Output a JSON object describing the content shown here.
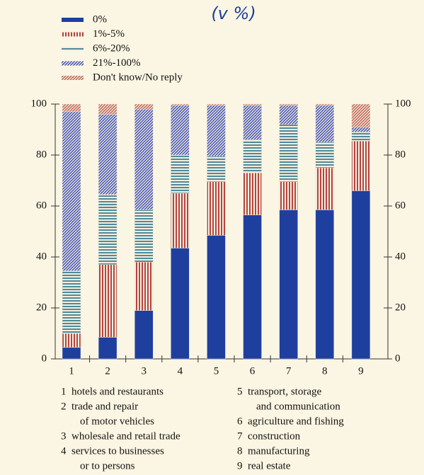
{
  "chart_data": {
    "type": "stacked_bar",
    "title": "(v %)",
    "categories": [
      "1",
      "2",
      "3",
      "4",
      "5",
      "6",
      "7",
      "8",
      "9"
    ],
    "series": [
      {
        "name": "0%",
        "color": "#1f3f9f",
        "pattern": "solid",
        "values": [
          4.5,
          8.5,
          19,
          43.5,
          48.5,
          56.5,
          58.5,
          58.5,
          66
        ]
      },
      {
        "name": "1%-5%",
        "color": "#b5443e",
        "pattern": "vertical",
        "values": [
          5.5,
          28.5,
          19,
          21.5,
          21,
          16.5,
          11,
          16.5,
          19.5
        ]
      },
      {
        "name": "6%-20%",
        "color": "#4f8a99",
        "pattern": "horizontal",
        "values": [
          24.5,
          27.5,
          20.5,
          15,
          10,
          13,
          22.5,
          10,
          3.5
        ]
      },
      {
        "name": "21%-100%",
        "color": "#3f4fb0",
        "pattern": "diagonal",
        "values": [
          62.5,
          31.5,
          39.5,
          19.5,
          20,
          13.5,
          7.5,
          14.5,
          2
        ]
      },
      {
        "name": "Don't know/No reply",
        "color": "#c0604f",
        "pattern": "diagonal",
        "values": [
          3,
          4,
          2,
          0.5,
          0.5,
          0.5,
          0.5,
          0.5,
          9
        ]
      }
    ],
    "ylim": [
      0,
      100
    ],
    "yticks": [
      0,
      20,
      40,
      60,
      80,
      100
    ],
    "y2lim": [
      0,
      100
    ],
    "y2ticks": [
      0,
      20,
      40,
      60,
      80,
      100
    ],
    "category_descriptions": [
      [
        "hotels and restaurants"
      ],
      [
        "trade and repair",
        "of motor vehicles"
      ],
      [
        "wholesale and retail trade"
      ],
      [
        "services to businesses",
        "or to persons"
      ],
      [
        "transport, storage",
        "and communication"
      ],
      [
        "agriculture and fishing"
      ],
      [
        "construction"
      ],
      [
        "manufacturing"
      ],
      [
        "real estate"
      ]
    ]
  }
}
